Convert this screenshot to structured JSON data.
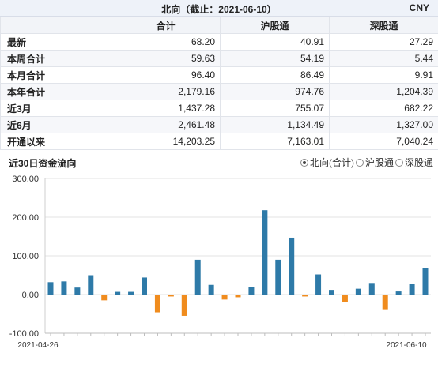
{
  "header": {
    "title": "北向（截止：2021-06-10）",
    "currency": "CNY"
  },
  "table": {
    "columns": [
      "",
      "合计",
      "沪股通",
      "深股通"
    ],
    "rows": [
      {
        "label": "最新",
        "values": [
          "68.20",
          "40.91",
          "27.29"
        ]
      },
      {
        "label": "本周合计",
        "values": [
          "59.63",
          "54.19",
          "5.44"
        ]
      },
      {
        "label": "本月合计",
        "values": [
          "96.40",
          "86.49",
          "9.91"
        ]
      },
      {
        "label": "本年合计",
        "values": [
          "2,179.16",
          "974.76",
          "1,204.39"
        ]
      },
      {
        "label": "近3月",
        "values": [
          "1,437.28",
          "755.07",
          "682.22"
        ]
      },
      {
        "label": "近6月",
        "values": [
          "2,461.48",
          "1,134.49",
          "1,327.00"
        ]
      },
      {
        "label": "开通以来",
        "values": [
          "14,203.25",
          "7,163.01",
          "7,040.24"
        ]
      }
    ]
  },
  "chart_section": {
    "title": "近30日资金流向",
    "legend": {
      "options": [
        "北向(合计)",
        "沪股通",
        "深股通"
      ],
      "selected": "北向(合计)"
    }
  },
  "colors": {
    "positive": "#2e7aa8",
    "negative": "#f08c1e"
  },
  "chart_data": {
    "type": "bar",
    "title": "近30日资金流向",
    "x_start_label": "2021-04-26",
    "x_end_label": "2021-06-10",
    "ylim": [
      -100,
      300
    ],
    "yticks": [
      "300.00",
      "200.00",
      "100.00",
      "0.00",
      "-100.00"
    ],
    "ytick_values": [
      300,
      200,
      100,
      0,
      -100
    ],
    "grid": "horizontal",
    "series": [
      {
        "values": [
          32,
          34,
          18,
          50,
          -15,
          7,
          7,
          44,
          -46,
          -5,
          -55,
          90,
          25,
          -13,
          -7,
          19,
          218,
          90,
          147,
          -5,
          52,
          12,
          -19,
          15,
          30,
          -38,
          8,
          28,
          68
        ]
      }
    ]
  }
}
